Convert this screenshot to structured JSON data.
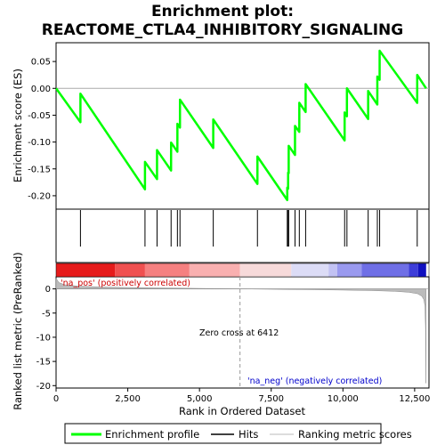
{
  "chart_data": {
    "type": "line",
    "title_line1": "Enrichment plot:",
    "title_line2": "REACTOME_CTLA4_INHIBITORY_SIGNALING",
    "ylabel_top": "Enrichment score (ES)",
    "ylabel_bottom": "Ranked list metric (PreRanked)",
    "xlabel": "Rank in Ordered Dataset",
    "xlim": [
      0,
      13000
    ],
    "x_ticks": [
      0,
      2500,
      5000,
      7500,
      10000,
      12500
    ],
    "x_tick_labels": [
      "0",
      "2,500",
      "5,000",
      "7,500",
      "10,000",
      "12,500"
    ],
    "es_ylim": [
      -0.225,
      0.085
    ],
    "es_ticks": [
      0.05,
      0.0,
      -0.05,
      -0.1,
      -0.15,
      -0.2
    ],
    "es_tick_labels": [
      "0.05",
      "0.00",
      "-0.05",
      "-0.10",
      "-0.15",
      "-0.20"
    ],
    "metric_ylim": [
      -20.5,
      2.5
    ],
    "metric_ticks": [
      0,
      -5,
      -10,
      -15,
      -20
    ],
    "metric_tick_labels": [
      "0",
      "-5",
      "-10",
      "-15",
      "-20"
    ],
    "total_rank": 12900,
    "hits": [
      850,
      3100,
      3520,
      4010,
      4230,
      4320,
      5480,
      7020,
      8060,
      8090,
      8110,
      8330,
      8480,
      8700,
      10060,
      10140,
      10880,
      11200,
      11280,
      12590
    ],
    "es_curve": {
      "x": [
        0,
        849,
        850,
        3099,
        3100,
        3519,
        3520,
        4009,
        4010,
        4229,
        4230,
        4319,
        4320,
        5479,
        5480,
        7019,
        7020,
        8059,
        8060,
        8089,
        8090,
        8109,
        8110,
        8329,
        8330,
        8479,
        8480,
        8699,
        8700,
        10059,
        10060,
        10139,
        10140,
        10879,
        10880,
        11199,
        11200,
        11279,
        11280,
        12589,
        12590,
        12900
      ],
      "y": [
        0.0,
        -0.063,
        -0.01,
        -0.188,
        -0.137,
        -0.169,
        -0.115,
        -0.153,
        -0.101,
        -0.118,
        -0.066,
        -0.073,
        -0.021,
        -0.111,
        -0.058,
        -0.178,
        -0.127,
        -0.208,
        -0.185,
        -0.187,
        -0.157,
        -0.158,
        -0.107,
        -0.124,
        -0.07,
        -0.081,
        -0.027,
        -0.044,
        0.008,
        -0.097,
        -0.045,
        -0.052,
        0.0,
        -0.057,
        -0.005,
        -0.03,
        0.022,
        0.016,
        0.07,
        -0.027,
        0.025,
        0.0
      ]
    },
    "metric_profile": {
      "x": [
        0,
        100,
        300,
        800,
        1500,
        2500,
        3500,
        4500,
        5500,
        6412,
        7500,
        9000,
        10000,
        11000,
        11800,
        12300,
        12600,
        12750,
        12820,
        12860,
        12880,
        12895
      ],
      "y": [
        2.2,
        1.3,
        0.85,
        0.55,
        0.4,
        0.28,
        0.2,
        0.13,
        0.06,
        0.0,
        -0.08,
        -0.17,
        -0.25,
        -0.35,
        -0.5,
        -0.7,
        -1.0,
        -1.5,
        -2.2,
        -3.5,
        -8.0,
        -19.5
      ]
    },
    "heat_colors": [
      "#e61b1b",
      "#f05050",
      "#f58080",
      "#f9b0b0",
      "#f7dada",
      "#dcdcf6",
      "#c2c2f3",
      "#9a9aef",
      "#6f6fe6",
      "#3d3dd9",
      "#1010c0"
    ],
    "heat_boundaries": [
      0,
      2050,
      3100,
      4650,
      6412,
      8200,
      9500,
      9800,
      10650,
      12300,
      12620,
      12900
    ],
    "zero_cross_label": "Zero cross at 6412",
    "zero_cross": 6412,
    "pos_label": "'na_pos' (positively correlated)",
    "neg_label": "'na_neg' (negatively correlated)",
    "legend": {
      "es": "Enrichment profile",
      "hits": "Hits",
      "metric": "Ranking metric scores"
    },
    "colors": {
      "es_line": "#00ff00",
      "hit_line": "#000000",
      "metric_fill": "#bbbbbb",
      "zero_line": "#999999",
      "pos_text": "#cc0000",
      "neg_text": "#0000cc"
    }
  }
}
